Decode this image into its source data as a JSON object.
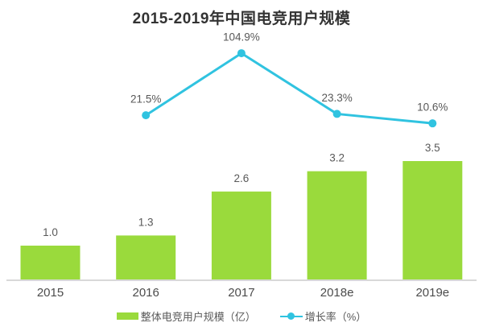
{
  "chart": {
    "title": "2015-2019年中国电竞用户规模",
    "legend": {
      "bar_label": "整体电竞用户规模（亿）",
      "line_label": "增长率（%）"
    }
  },
  "chart_data": {
    "type": "bar+line",
    "title": "2015-2019年中国电竞用户规模",
    "categories": [
      "2015",
      "2016",
      "2017",
      "2018e",
      "2019e"
    ],
    "series": [
      {
        "name": "整体电竞用户规模（亿）",
        "type": "bar",
        "unit": "亿",
        "values": [
          1.0,
          1.3,
          2.6,
          3.2,
          3.5
        ],
        "labels": [
          "1.0",
          "1.3",
          "2.6",
          "3.2",
          "3.5"
        ],
        "color": "#9ada3c"
      },
      {
        "name": "增长率（%）",
        "type": "line",
        "unit": "%",
        "values": [
          null,
          21.5,
          104.9,
          23.3,
          10.6
        ],
        "labels": [
          null,
          "21.5%",
          "104.9%",
          "23.3%",
          "10.6%"
        ],
        "color": "#30c3e0"
      }
    ],
    "xlabel": "",
    "ylabel": "",
    "grid": false,
    "y_axis_visible": false,
    "legend_position": "bottom",
    "axis_line_color": "#cccccc",
    "label_color": "#595959"
  }
}
